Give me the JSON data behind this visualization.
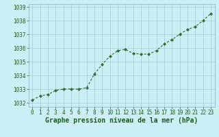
{
  "x": [
    0,
    1,
    2,
    3,
    4,
    5,
    6,
    7,
    8,
    9,
    10,
    11,
    12,
    13,
    14,
    15,
    16,
    17,
    18,
    19,
    20,
    21,
    22,
    23
  ],
  "y": [
    1032.2,
    1032.5,
    1032.6,
    1032.9,
    1033.0,
    1033.0,
    1033.0,
    1033.1,
    1034.1,
    1034.8,
    1035.4,
    1035.8,
    1035.9,
    1035.6,
    1035.55,
    1035.55,
    1035.8,
    1036.3,
    1036.6,
    1037.0,
    1037.35,
    1037.55,
    1038.0,
    1038.5
  ],
  "line_color": "#2d6a2d",
  "marker_color": "#2d6a2d",
  "bg_color": "#cceef5",
  "grid_color": "#99ccd9",
  "xlabel": "Graphe pression niveau de la mer (hPa)",
  "xlabel_color": "#1a5c1a",
  "tick_color": "#1a5c1a",
  "ylim": [
    1031.7,
    1039.2
  ],
  "yticks": [
    1032,
    1033,
    1034,
    1035,
    1036,
    1037,
    1038,
    1039
  ],
  "xlim": [
    -0.5,
    23.5
  ],
  "xticks": [
    0,
    1,
    2,
    3,
    4,
    5,
    6,
    7,
    8,
    9,
    10,
    11,
    12,
    13,
    14,
    15,
    16,
    17,
    18,
    19,
    20,
    21,
    22,
    23
  ],
  "font_size_xlabel": 7.0,
  "font_size_ticks": 5.5
}
